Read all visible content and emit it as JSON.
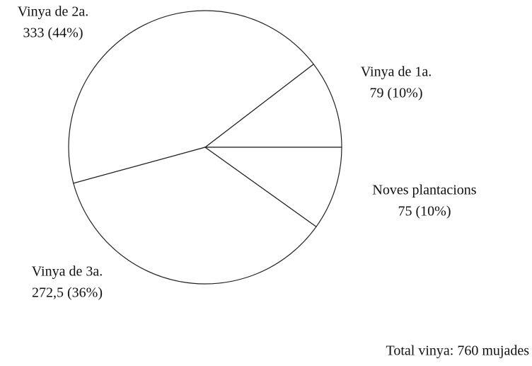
{
  "chart_data": {
    "type": "pie",
    "categories": [
      "Vinya de 1a.",
      "Vinya de 2a.",
      "Vinya de 3a.",
      "Noves plantacions"
    ],
    "values": [
      79,
      333,
      272.5,
      75
    ],
    "value_labels": [
      "79 (10%)",
      "333 (44%)",
      "272,5 (36%)",
      "75 (10%)"
    ],
    "color": "#ffffff",
    "annotation": "Total vinya: 760 mujades"
  }
}
